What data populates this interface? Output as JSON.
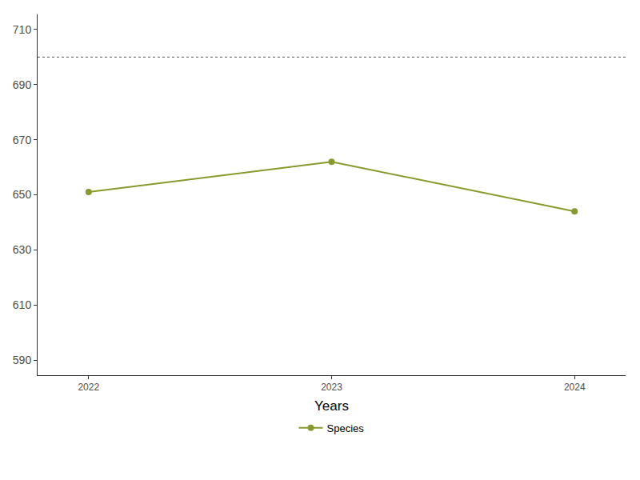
{
  "chart_data": {
    "type": "line",
    "x_title": "Years",
    "x": [
      2022,
      2023,
      2024
    ],
    "series": [
      {
        "name": "Species",
        "color": "#889a2e",
        "marker": "circle",
        "values": [
          651,
          662,
          644
        ]
      }
    ],
    "xlim": [
      2021.79,
      2024.21
    ],
    "xticks": [
      2022,
      2023,
      2024
    ],
    "ylim": [
      584.5,
      715.5
    ],
    "yticks": [
      590,
      610,
      630,
      650,
      670,
      690,
      710
    ],
    "reference_line": 700,
    "grid": false,
    "legend": "bottom"
  }
}
